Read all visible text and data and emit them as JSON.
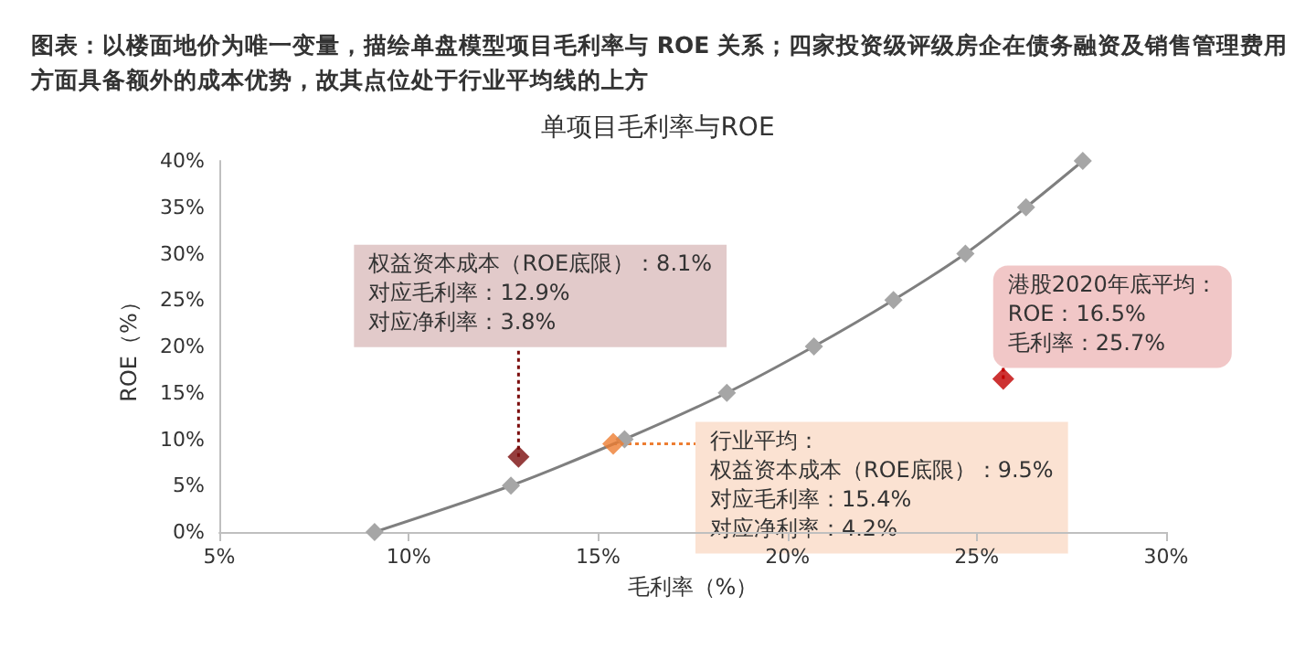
{
  "chart_data": {
    "type": "line",
    "title": "图表：以楼面地价为唯一变量，描绘单盘模型项目毛利率与 ROE 关系；四家投资级评级房企在债务融资及销售管理费用方面具备额外的成本优势，故其点位处于行业平均线的上方",
    "subtitle": "单项目毛利率与ROE",
    "xlabel": "毛利率（%）",
    "ylabel": "ROE（%）",
    "marker": "diamond",
    "series": [
      {
        "color": "#a6a6a6",
        "x": [
          9.1,
          12.7,
          15.7,
          18.4,
          20.7,
          22.8,
          24.7,
          26.3,
          27.8
        ],
        "values": [
          0,
          5,
          10,
          15,
          20,
          25,
          30,
          35,
          40
        ]
      },
      {
        "type": "scatter",
        "color": "#7b0c0c",
        "x": [
          12.9
        ],
        "values": [
          8.1
        ]
      },
      {
        "type": "scatter",
        "color": "#ed7d31",
        "x": [
          15.4
        ],
        "values": [
          9.5
        ]
      },
      {
        "type": "scatter",
        "color": "#c00000",
        "x": [
          25.7
        ],
        "values": [
          16.5
        ]
      }
    ],
    "xlim": [
      5,
      30
    ],
    "xticks": [
      {
        "value": 5,
        "label": "5%"
      },
      {
        "value": 10,
        "label": "10%"
      },
      {
        "value": 15,
        "label": "15%"
      },
      {
        "value": 20,
        "label": "20%"
      },
      {
        "value": 25,
        "label": "25%"
      },
      {
        "value": 30,
        "label": "30%"
      }
    ],
    "ylim": [
      0,
      40
    ],
    "yticks": [
      {
        "value": 0,
        "label": "0%"
      },
      {
        "value": 5,
        "label": "5%"
      },
      {
        "value": 10,
        "label": "10%"
      },
      {
        "value": 15,
        "label": "15%"
      },
      {
        "value": 20,
        "label": "20%"
      },
      {
        "value": 25,
        "label": "25%"
      },
      {
        "value": 30,
        "label": "30%"
      },
      {
        "value": 35,
        "label": "35%"
      },
      {
        "value": 40,
        "label": "40%"
      }
    ],
    "annotations": [
      "权益资本成本（ROE底限）：8.1%",
      "对应毛利率：12.9%",
      {
        "text": "对应净利率：3.8%",
        "x": 12.9,
        "y": 8.1
      },
      "行业平均：",
      "权益资本成本（ROE底限）：9.5%",
      "对应毛利率：15.4%",
      "对应净利率：4.2%",
      "港股2020年底平均：",
      "ROE：16.5%",
      "毛利率：25.7%"
    ]
  }
}
